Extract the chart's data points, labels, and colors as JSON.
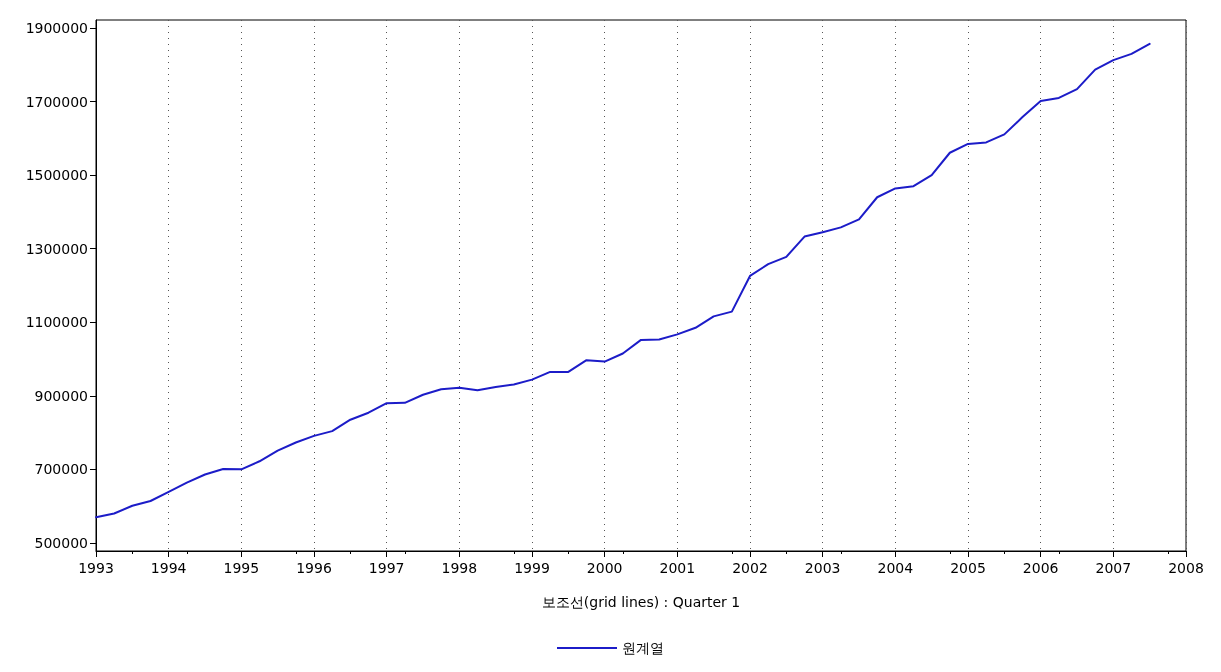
{
  "chart_data": {
    "type": "line",
    "xlabel": "보조선(grid lines) : Quarter 1",
    "x": [
      1993,
      1993.25,
      1993.5,
      1993.75,
      1994,
      1994.25,
      1994.5,
      1994.75,
      1995,
      1995.25,
      1995.5,
      1995.75,
      1996,
      1996.25,
      1996.5,
      1996.75,
      1997,
      1997.25,
      1997.5,
      1997.75,
      1998,
      1998.25,
      1998.5,
      1998.75,
      1999,
      1999.25,
      1999.5,
      1999.75,
      2000,
      2000.25,
      2000.5,
      2000.75,
      2001,
      2001.25,
      2001.5,
      2001.75,
      2002,
      2002.25,
      2002.5,
      2002.75,
      2003,
      2003.25,
      2003.5,
      2003.75,
      2004,
      2004.25,
      2004.5,
      2004.75,
      2005,
      2005.25,
      2005.5,
      2005.75,
      2006,
      2006.25,
      2006.5,
      2006.75,
      2007,
      2007.25,
      2007.5
    ],
    "series": [
      {
        "name": "원계열",
        "color": "#1c1cc8",
        "values": [
          570000,
          580000,
          601000,
          614000,
          639000,
          664000,
          686000,
          701000,
          700000,
          722000,
          751000,
          773000,
          791000,
          804000,
          835000,
          854000,
          880000,
          881000,
          903000,
          918000,
          922000,
          915000,
          924000,
          931000,
          944000,
          965000,
          965000,
          997000,
          993000,
          1015000,
          1052000,
          1053000,
          1067000,
          1085000,
          1116000,
          1129000,
          1226000,
          1258000,
          1278000,
          1333000,
          1345000,
          1358000,
          1380000,
          1440000,
          1464000,
          1470000,
          1500000,
          1561000,
          1585000,
          1589000,
          1611000,
          1658000,
          1702000,
          1710000,
          1734000,
          1787000,
          1813000,
          1830000,
          1857000
        ]
      }
    ],
    "xlim": [
      1993,
      2008
    ],
    "xticks": [
      1993,
      1994,
      1995,
      1996,
      1997,
      1998,
      1999,
      2000,
      2001,
      2002,
      2003,
      2004,
      2005,
      2006,
      2007,
      2008
    ],
    "ylim": [
      478000,
      1922000
    ],
    "yticks": [
      500000,
      700000,
      900000,
      1100000,
      1300000,
      1500000,
      1700000,
      1900000
    ],
    "grid": "x",
    "legend": "bottom",
    "marker": "none",
    "line_style": "solid"
  }
}
